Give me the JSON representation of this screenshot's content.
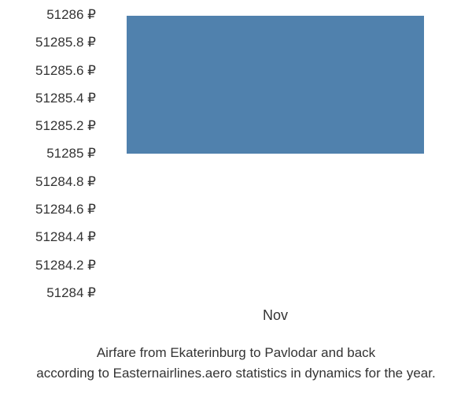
{
  "chart": {
    "type": "bar",
    "y_ticks": [
      "51286 ₽",
      "51285.8 ₽",
      "51285.6 ₽",
      "51285.4 ₽",
      "51285.2 ₽",
      "51285 ₽",
      "51284.8 ₽",
      "51284.6 ₽",
      "51284.4 ₽",
      "51284.2 ₽",
      "51284 ₽"
    ],
    "x_ticks": [
      "Nov"
    ],
    "y_min": 51284,
    "y_max": 51286,
    "bar_value": 51286,
    "bar_baseline": 51285,
    "bar_color": "#5081ad",
    "bar_width_pct": 90,
    "bar_left_pct": 5,
    "background_color": "#ffffff",
    "font_family": "Arial, sans-serif",
    "tick_fontsize": 17,
    "tick_color": "#333333"
  },
  "caption": {
    "line1": "Airfare from Ekaterinburg to Pavlodar and back",
    "line2": "according to Easternairlines.aero statistics in dynamics for the year.",
    "fontsize": 17,
    "color": "#333333"
  }
}
